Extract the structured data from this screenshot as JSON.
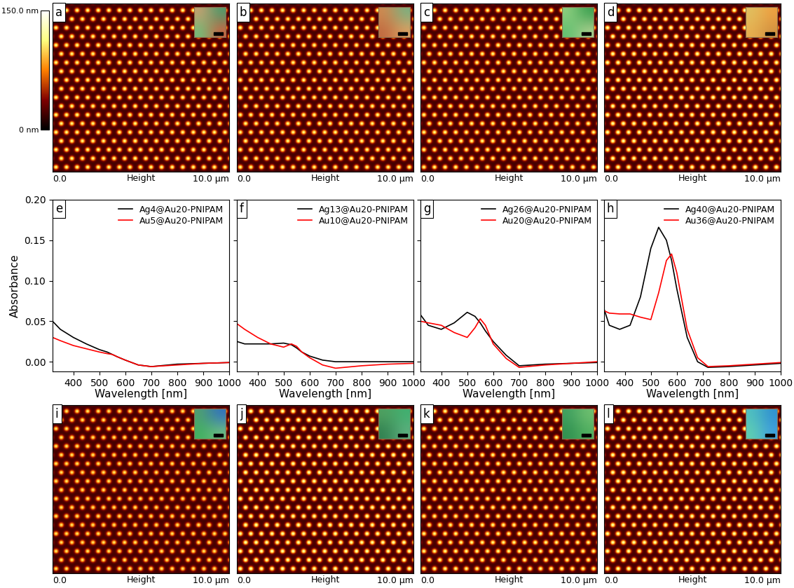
{
  "chart_data": [
    {
      "type": "image",
      "panel": "a",
      "xlabel": "Height",
      "xlim": [
        0,
        10
      ],
      "ylim": [
        0,
        10
      ],
      "xticks": [
        {
          "value": 0,
          "label": "0.0"
        },
        {
          "value": 10,
          "label": "10.0 µm"
        }
      ],
      "tick_labels": "x",
      "lattice_spacing": 0.6,
      "dot_height": 120,
      "background_height": 20,
      "zlim": [
        0,
        150
      ],
      "colorbar_ticks": [
        {
          "value": 0,
          "label": "0 nm"
        },
        {
          "value": 150,
          "label": "150.0 nm"
        }
      ]
    },
    {
      "type": "image",
      "panel": "b",
      "xlabel": "Height",
      "xlim": [
        0,
        10
      ],
      "ylim": [
        0,
        10
      ],
      "xticks": [
        {
          "value": 0,
          "label": "0.0"
        },
        {
          "value": 10,
          "label": "10.0 µm"
        }
      ],
      "tick_labels": "x",
      "lattice_spacing": 0.6,
      "dot_height": 120,
      "background_height": 20,
      "zlim": [
        0,
        150
      ]
    },
    {
      "type": "image",
      "panel": "c",
      "xlabel": "Height",
      "xlim": [
        0,
        10
      ],
      "ylim": [
        0,
        10
      ],
      "xticks": [
        {
          "value": 0,
          "label": "0.0"
        },
        {
          "value": 10,
          "label": "10.0 µm"
        }
      ],
      "tick_labels": "x",
      "lattice_spacing": 0.6,
      "dot_height": 120,
      "background_height": 20,
      "zlim": [
        0,
        150
      ]
    },
    {
      "type": "image",
      "panel": "d",
      "xlabel": "Height",
      "xlim": [
        0,
        10
      ],
      "ylim": [
        0,
        10
      ],
      "xticks": [
        {
          "value": 0,
          "label": "0.0"
        },
        {
          "value": 10,
          "label": "10.0 µm"
        }
      ],
      "tick_labels": "x",
      "lattice_spacing": 0.6,
      "dot_height": 130,
      "background_height": 20,
      "zlim": [
        0,
        150
      ]
    },
    {
      "type": "line",
      "panel": "e",
      "xlabel": "Wavelength [nm]",
      "ylabel": "Absorbance",
      "xlim": [
        320,
        1000
      ],
      "ylim": [
        -0.012,
        0.2
      ],
      "xticks": [
        400,
        500,
        600,
        700,
        800,
        900,
        1000
      ],
      "yticks": [
        {
          "value": 0.0,
          "label": "0.00"
        },
        {
          "value": 0.05,
          "label": "0.05"
        },
        {
          "value": 0.1,
          "label": "0.10"
        },
        {
          "value": 0.15,
          "label": "0.15"
        },
        {
          "value": 0.2,
          "label": "0.20"
        }
      ],
      "legend": "upper right",
      "x": [
        320,
        350,
        400,
        450,
        500,
        530,
        550,
        570,
        600,
        650,
        700,
        800,
        900,
        1000
      ],
      "series": [
        {
          "name": "Ag4@Au20-PNIPAM",
          "color": "#000000",
          "values": [
            0.05,
            0.04,
            0.03,
            0.022,
            0.015,
            0.012,
            0.009,
            0.006,
            0.002,
            -0.004,
            -0.006,
            -0.003,
            -0.002,
            -0.001
          ]
        },
        {
          "name": "Au5@Au20-PNIPAM",
          "color": "#ff0000",
          "values": [
            0.03,
            0.026,
            0.02,
            0.016,
            0.012,
            0.01,
            0.009,
            0.006,
            0.002,
            -0.004,
            -0.006,
            -0.004,
            -0.002,
            -0.001
          ]
        }
      ]
    },
    {
      "type": "line",
      "panel": "f",
      "xlabel": "Wavelength [nm]",
      "xlim": [
        320,
        1000
      ],
      "ylim": [
        -0.012,
        0.2
      ],
      "xticks": [
        400,
        500,
        600,
        700,
        800,
        900,
        1000
      ],
      "yticks": [
        {
          "value": 0.0,
          "label": "0.00"
        },
        {
          "value": 0.05,
          "label": "0.05"
        },
        {
          "value": 0.1,
          "label": "0.10"
        },
        {
          "value": 0.15,
          "label": "0.15"
        },
        {
          "value": 0.2,
          "label": "0.20"
        }
      ],
      "tick_labels": "x",
      "legend": "upper right",
      "x": [
        320,
        350,
        400,
        450,
        500,
        530,
        550,
        570,
        600,
        650,
        700,
        800,
        900,
        1000
      ],
      "series": [
        {
          "name": "Ag13@Au20-PNIPAM",
          "color": "#000000",
          "values": [
            0.025,
            0.022,
            0.022,
            0.022,
            0.023,
            0.021,
            0.017,
            0.012,
            0.007,
            0.002,
            0.0,
            0.0,
            0.0,
            0.0
          ]
        },
        {
          "name": "Au10@Au20-PNIPAM",
          "color": "#ff0000",
          "values": [
            0.047,
            0.04,
            0.03,
            0.022,
            0.018,
            0.022,
            0.019,
            0.012,
            0.005,
            -0.004,
            -0.008,
            -0.005,
            -0.003,
            -0.002
          ]
        }
      ]
    },
    {
      "type": "line",
      "panel": "g",
      "xlabel": "Wavelength [nm]",
      "xlim": [
        320,
        1000
      ],
      "ylim": [
        -0.012,
        0.2
      ],
      "xticks": [
        400,
        500,
        600,
        700,
        800,
        900,
        1000
      ],
      "yticks": [
        {
          "value": 0.0,
          "label": "0.00"
        },
        {
          "value": 0.05,
          "label": "0.05"
        },
        {
          "value": 0.1,
          "label": "0.10"
        },
        {
          "value": 0.15,
          "label": "0.15"
        },
        {
          "value": 0.2,
          "label": "0.20"
        }
      ],
      "tick_labels": "x",
      "legend": "upper right",
      "x": [
        320,
        350,
        400,
        450,
        500,
        530,
        550,
        570,
        600,
        650,
        700,
        800,
        900,
        1000
      ],
      "series": [
        {
          "name": "Ag26@Au20-PNIPAM",
          "color": "#000000",
          "values": [
            0.058,
            0.045,
            0.04,
            0.048,
            0.061,
            0.056,
            0.048,
            0.038,
            0.025,
            0.008,
            -0.005,
            -0.003,
            -0.002,
            -0.001
          ]
        },
        {
          "name": "Au20@Au20-PNIPAM",
          "color": "#ff0000",
          "values": [
            0.05,
            0.048,
            0.045,
            0.036,
            0.03,
            0.042,
            0.053,
            0.045,
            0.022,
            0.004,
            -0.007,
            -0.004,
            -0.002,
            0.0
          ]
        }
      ]
    },
    {
      "type": "line",
      "panel": "h",
      "xlabel": "Wavelength [nm]",
      "xlim": [
        320,
        1000
      ],
      "ylim": [
        -0.012,
        0.2
      ],
      "xticks": [
        400,
        500,
        600,
        700,
        800,
        900,
        1000
      ],
      "yticks": [
        {
          "value": 0.0,
          "label": "0.00"
        },
        {
          "value": 0.05,
          "label": "0.05"
        },
        {
          "value": 0.1,
          "label": "0.10"
        },
        {
          "value": 0.15,
          "label": "0.15"
        },
        {
          "value": 0.2,
          "label": "0.20"
        }
      ],
      "tick_labels": "x",
      "legend": "upper right",
      "x": [
        320,
        340,
        380,
        420,
        460,
        500,
        530,
        560,
        580,
        600,
        640,
        680,
        720,
        800,
        900,
        1000
      ],
      "series": [
        {
          "name": "Ag40@Au20-PNIPAM",
          "color": "#000000",
          "values": [
            0.065,
            0.045,
            0.04,
            0.045,
            0.08,
            0.14,
            0.166,
            0.15,
            0.125,
            0.09,
            0.03,
            0.0,
            -0.007,
            -0.006,
            -0.004,
            -0.002
          ]
        },
        {
          "name": "Au36@Au20-PNIPAM",
          "color": "#ff0000",
          "values": [
            0.063,
            0.06,
            0.059,
            0.059,
            0.055,
            0.052,
            0.085,
            0.125,
            0.133,
            0.11,
            0.04,
            0.005,
            -0.006,
            -0.005,
            -0.003,
            -0.001
          ]
        }
      ]
    },
    {
      "type": "image",
      "panel": "i",
      "xlabel": "Height",
      "xlim": [
        0,
        10
      ],
      "ylim": [
        0,
        10
      ],
      "xticks": [
        {
          "value": 0,
          "label": "0.0"
        },
        {
          "value": 10,
          "label": "10.0 µm"
        }
      ],
      "tick_labels": "x",
      "lattice_spacing": 0.6,
      "dot_height": 110,
      "background_height": 20,
      "zlim": [
        0,
        150
      ]
    },
    {
      "type": "image",
      "panel": "j",
      "xlabel": "Height",
      "xlim": [
        0,
        10
      ],
      "ylim": [
        0,
        10
      ],
      "xticks": [
        {
          "value": 0,
          "label": "0.0"
        },
        {
          "value": 10,
          "label": "10.0 µm"
        }
      ],
      "tick_labels": "x",
      "lattice_spacing": 0.6,
      "dot_height": 130,
      "background_height": 20,
      "zlim": [
        0,
        150
      ]
    },
    {
      "type": "image",
      "panel": "k",
      "xlabel": "Height",
      "xlim": [
        0,
        10
      ],
      "ylim": [
        0,
        10
      ],
      "xticks": [
        {
          "value": 0,
          "label": "0.0"
        },
        {
          "value": 10,
          "label": "10.0 µm"
        }
      ],
      "tick_labels": "x",
      "lattice_spacing": 0.6,
      "dot_height": 120,
      "background_height": 20,
      "zlim": [
        0,
        150
      ]
    },
    {
      "type": "image",
      "panel": "l",
      "xlabel": "Height",
      "xlim": [
        0,
        10
      ],
      "ylim": [
        0,
        10
      ],
      "xticks": [
        {
          "value": 0,
          "label": "0.0"
        },
        {
          "value": 10,
          "label": "10.0 µm"
        }
      ],
      "tick_labels": "x",
      "lattice_spacing": 0.6,
      "dot_height": 130,
      "background_height": 20,
      "zlim": [
        0,
        150
      ]
    }
  ]
}
